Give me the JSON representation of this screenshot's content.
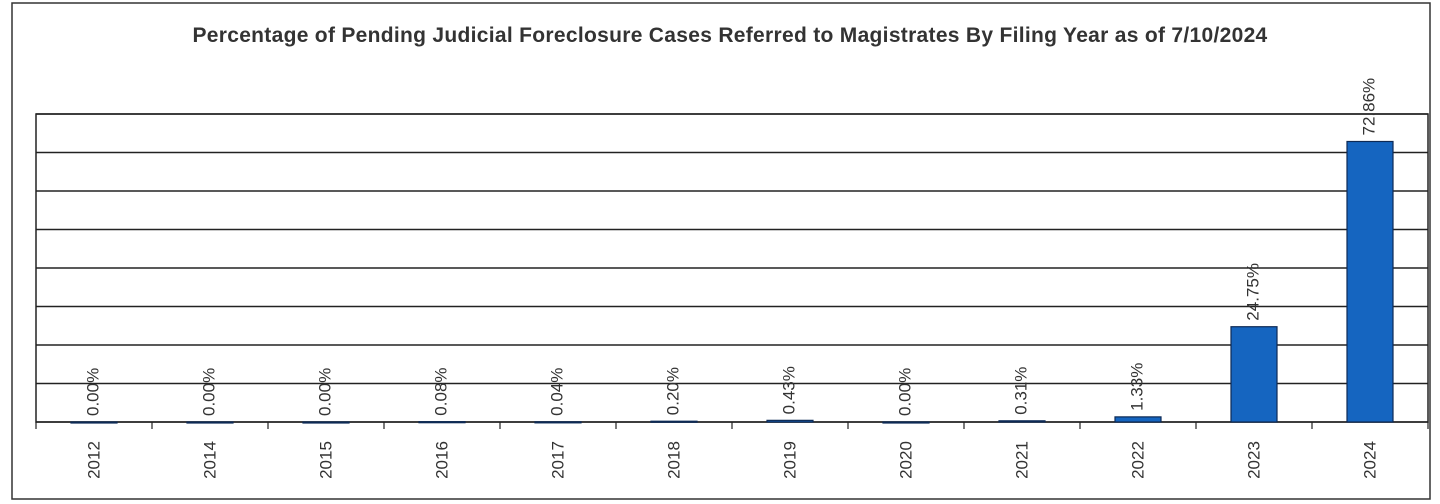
{
  "chart_data": {
    "type": "bar",
    "title": "Percentage of Pending Judicial Foreclosure Cases Referred to Magistrates By Filing Year as of 7/10/2024",
    "categories": [
      "2012",
      "2014",
      "2015",
      "2016",
      "2017",
      "2018",
      "2019",
      "2020",
      "2021",
      "2022",
      "2023",
      "2024"
    ],
    "values": [
      0,
      0,
      0,
      0.08,
      0.04,
      0.2,
      0.43,
      0,
      0.31,
      1.33,
      24.75,
      72.86
    ],
    "value_labels": [
      "0.00%",
      "0.00%",
      "0.00%",
      "0.08%",
      "0.04%",
      "0.20%",
      "0.43%",
      "0.00%",
      "0.31%",
      "1.33%",
      "24.75%",
      "72.86%"
    ],
    "color": "#1565c0",
    "ylim": [
      0,
      80
    ],
    "yticks": [
      0,
      10,
      20,
      30,
      40,
      50,
      60,
      70,
      80
    ],
    "grid": true
  }
}
